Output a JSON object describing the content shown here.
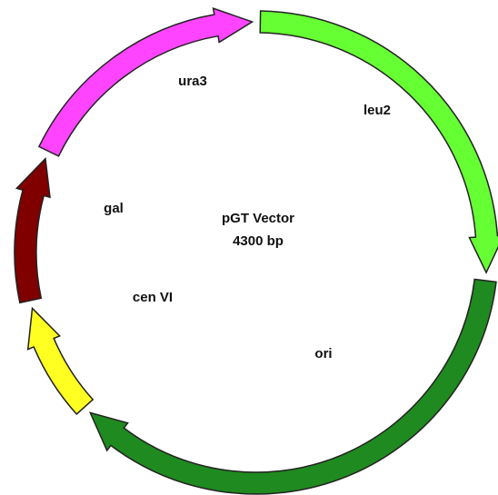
{
  "title": "pGT Vector",
  "size": "4300 bp",
  "features": [
    {
      "label": "ura3"
    },
    {
      "label": "leu2"
    },
    {
      "label": "gal"
    },
    {
      "label": "cen VI"
    },
    {
      "label": "ori"
    }
  ]
}
